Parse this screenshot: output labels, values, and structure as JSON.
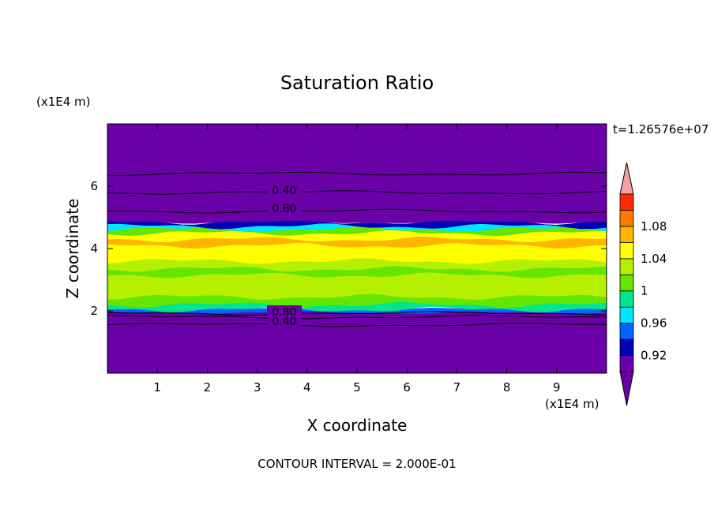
{
  "chart_data": {
    "type": "heatmap",
    "title": "Saturation Ratio",
    "time_label": "t=1.26576e+07",
    "xlabel": "X coordinate",
    "ylabel": "Z coordinate",
    "x_unit": "(x1E4 m)",
    "y_unit": "(x1E4 m)",
    "xlim": [
      0,
      10
    ],
    "ylim": [
      0,
      8
    ],
    "x_ticks": [
      1,
      2,
      3,
      4,
      5,
      6,
      7,
      8,
      9
    ],
    "y_ticks": [
      2,
      4,
      6
    ],
    "footer": "CONTOUR INTERVAL = 2.000E-01",
    "colorbar": {
      "min": 0.9,
      "step": 0.02,
      "colors": [
        "#6a00a8",
        "#0000b4",
        "#0064ff",
        "#00e6ff",
        "#00e68c",
        "#64e600",
        "#b4f000",
        "#ffff00",
        "#ffb400",
        "#ff7800",
        "#ff2800"
      ],
      "over_color": "#f4a0a0",
      "under_color": "#6a00a8",
      "tick_values": [
        0.92,
        0.96,
        1,
        1.04,
        1.08
      ],
      "tick_labels": [
        "0.92",
        "0.96",
        "1",
        "1.04",
        "1.08"
      ]
    },
    "contour_labels": [
      "0.40",
      "0.80",
      "0.80",
      "0.40"
    ],
    "layers": [
      {
        "z0": 0.0,
        "z1": 1.95,
        "value": 0.3
      },
      {
        "z0": 1.95,
        "z1": 2.05,
        "value": 0.95
      },
      {
        "z0": 2.05,
        "z1": 2.2,
        "value": 0.99
      },
      {
        "z0": 2.2,
        "z1": 2.45,
        "value": 1.0
      },
      {
        "z0": 2.45,
        "z1": 2.7,
        "value": 1.02
      },
      {
        "z0": 2.7,
        "z1": 2.9,
        "value": 1.03
      },
      {
        "z0": 2.9,
        "z1": 3.15,
        "value": 1.02
      },
      {
        "z0": 3.15,
        "z1": 3.35,
        "value": 1.0
      },
      {
        "z0": 3.35,
        "z1": 3.6,
        "value": 1.02
      },
      {
        "z0": 3.6,
        "z1": 3.85,
        "value": 1.04
      },
      {
        "z0": 3.85,
        "z1": 4.1,
        "value": 1.05
      },
      {
        "z0": 4.1,
        "z1": 4.3,
        "value": 1.06
      },
      {
        "z0": 4.3,
        "z1": 4.5,
        "value": 1.05
      },
      {
        "z0": 4.5,
        "z1": 4.62,
        "value": 1.0
      },
      {
        "z0": 4.62,
        "z1": 4.72,
        "value": 0.97
      },
      {
        "z0": 4.72,
        "z1": 4.85,
        "value": 0.93
      },
      {
        "z0": 4.85,
        "z1": 8.0,
        "value": 0.4
      }
    ],
    "contours": [
      {
        "z": 1.55,
        "value": 0.4
      },
      {
        "z": 1.8,
        "value": 0.8
      },
      {
        "z": 1.92,
        "value": 0.8
      },
      {
        "z": 5.2,
        "value": 0.8
      },
      {
        "z": 5.8,
        "value": 0.4
      },
      {
        "z": 6.4,
        "value": 0.4
      }
    ]
  }
}
